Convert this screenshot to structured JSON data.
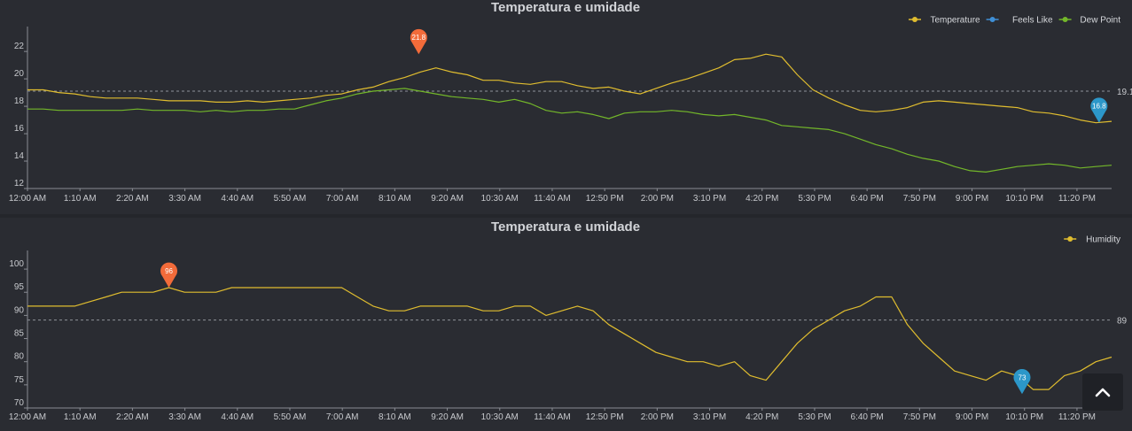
{
  "chart_data": [
    {
      "type": "line",
      "title": "Temperatura e umidade",
      "xlabels": [
        "12:00 AM",
        "1:10 AM",
        "2:20 AM",
        "3:30 AM",
        "4:40 AM",
        "5:50 AM",
        "7:00 AM",
        "8:10 AM",
        "9:20 AM",
        "10:30 AM",
        "11:40 AM",
        "12:50 PM",
        "2:00 PM",
        "3:10 PM",
        "4:20 PM",
        "5:30 PM",
        "6:40 PM",
        "7:50 PM",
        "9:00 PM",
        "10:10 PM",
        "11:20 PM"
      ],
      "ylim": [
        12,
        23.3
      ],
      "yticks": [
        "12",
        "14",
        "16",
        "18",
        "20",
        "22"
      ],
      "legend_position": "top-right",
      "average": {
        "value": 19.1,
        "label": "19.1"
      },
      "max_marker": {
        "series": "Temperature",
        "x": 24.9,
        "value": 21.8,
        "label": "21.8",
        "color": "#f26b3a"
      },
      "min_marker": {
        "series": "Temperature",
        "x": 68.2,
        "value": 16.8,
        "label": "16.8",
        "color": "#2c97c9"
      },
      "x_range": [
        0,
        69
      ],
      "series": [
        {
          "name": "Temperature",
          "color": "#e0bd2f",
          "x": [
            0,
            1,
            2,
            3,
            4,
            5,
            6,
            7,
            8,
            9,
            10,
            11,
            12,
            13,
            14,
            15,
            16,
            17,
            18,
            19,
            20,
            21,
            22,
            23,
            24,
            25,
            26,
            27,
            28,
            29,
            30,
            31,
            32,
            33,
            34,
            35,
            36,
            37,
            38,
            39,
            40,
            41,
            42,
            43,
            44,
            45,
            46,
            47,
            48,
            49,
            50,
            51,
            52,
            53,
            54,
            55,
            56,
            57,
            58,
            59,
            60,
            61,
            62,
            63,
            64,
            65,
            66,
            67,
            68,
            69
          ],
          "values": [
            19.2,
            19.2,
            19.0,
            18.9,
            18.7,
            18.6,
            18.6,
            18.6,
            18.5,
            18.4,
            18.4,
            18.4,
            18.3,
            18.3,
            18.4,
            18.3,
            18.4,
            18.5,
            18.6,
            18.8,
            18.9,
            19.2,
            19.4,
            19.8,
            20.1,
            20.5,
            20.8,
            20.5,
            20.3,
            19.9,
            19.9,
            19.7,
            19.6,
            19.8,
            19.8,
            19.5,
            19.3,
            19.4,
            19.1,
            18.9,
            19.3,
            19.7,
            20.0,
            20.4,
            20.8,
            21.4,
            21.5,
            21.8,
            21.6,
            20.3,
            19.2,
            18.6,
            18.1,
            17.7,
            17.6,
            17.7,
            17.9,
            18.3,
            18.4,
            18.3,
            18.2,
            18.1,
            18.0,
            17.9,
            17.6,
            17.5,
            17.3,
            17.0,
            16.8,
            16.9
          ]
        },
        {
          "name": "Feels Like",
          "color": "#3f8fd6",
          "x": [],
          "values": []
        },
        {
          "name": "Dew Point",
          "color": "#73b72a",
          "x": [
            0,
            1,
            2,
            3,
            4,
            5,
            6,
            7,
            8,
            9,
            10,
            11,
            12,
            13,
            14,
            15,
            16,
            17,
            18,
            19,
            20,
            21,
            22,
            23,
            24,
            25,
            26,
            27,
            28,
            29,
            30,
            31,
            32,
            33,
            34,
            35,
            36,
            37,
            38,
            39,
            40,
            41,
            42,
            43,
            44,
            45,
            46,
            47,
            48,
            49,
            50,
            51,
            52,
            53,
            54,
            55,
            56,
            57,
            58,
            59,
            60,
            61,
            62,
            63,
            64,
            65,
            66,
            67,
            68,
            69
          ],
          "values": [
            17.8,
            17.8,
            17.7,
            17.7,
            17.7,
            17.7,
            17.7,
            17.8,
            17.7,
            17.7,
            17.7,
            17.6,
            17.7,
            17.6,
            17.7,
            17.7,
            17.8,
            17.8,
            18.1,
            18.4,
            18.6,
            18.9,
            19.1,
            19.2,
            19.3,
            19.1,
            18.9,
            18.7,
            18.6,
            18.5,
            18.3,
            18.5,
            18.2,
            17.7,
            17.5,
            17.6,
            17.4,
            17.1,
            17.5,
            17.6,
            17.6,
            17.7,
            17.6,
            17.4,
            17.3,
            17.4,
            17.2,
            17.0,
            16.6,
            16.5,
            16.4,
            16.3,
            16.0,
            15.6,
            15.2,
            14.9,
            14.5,
            14.2,
            14.0,
            13.6,
            13.3,
            13.2,
            13.4,
            13.6,
            13.7,
            13.8,
            13.7,
            13.5,
            13.6,
            13.7
          ]
        }
      ]
    },
    {
      "type": "line",
      "title": "Temperatura e umidade",
      "xlabels": [
        "12:00 AM",
        "1:10 AM",
        "2:20 AM",
        "3:30 AM",
        "4:40 AM",
        "5:50 AM",
        "7:00 AM",
        "8:10 AM",
        "9:20 AM",
        "10:30 AM",
        "11:40 AM",
        "12:50 PM",
        "2:00 PM",
        "3:10 PM",
        "4:20 PM",
        "5:30 PM",
        "6:40 PM",
        "7:50 PM",
        "9:00 PM",
        "10:10 PM",
        "11:20 PM"
      ],
      "ylim": [
        70,
        102.5
      ],
      "yticks": [
        "70",
        "75",
        "80",
        "85",
        "90",
        "95",
        "100"
      ],
      "legend_position": "top-right",
      "average": {
        "value": 89,
        "label": "89"
      },
      "max_marker": {
        "series": "Humidity",
        "x": 9.0,
        "value": 96,
        "label": "96",
        "color": "#f26b3a"
      },
      "min_marker": {
        "series": "Humidity",
        "x": 63.3,
        "value": 73,
        "label": "73",
        "color": "#2c97c9"
      },
      "x_range": [
        0,
        69
      ],
      "series": [
        {
          "name": "Humidity",
          "color": "#e0bd2f",
          "x": [
            0,
            1,
            2,
            3,
            4,
            5,
            6,
            7,
            8,
            9,
            10,
            11,
            12,
            13,
            14,
            15,
            16,
            17,
            18,
            19,
            20,
            21,
            22,
            23,
            24,
            25,
            26,
            27,
            28,
            29,
            30,
            31,
            32,
            33,
            34,
            35,
            36,
            37,
            38,
            39,
            40,
            41,
            42,
            43,
            44,
            45,
            46,
            47,
            48,
            49,
            50,
            51,
            52,
            53,
            54,
            55,
            56,
            57,
            58,
            59,
            60,
            61,
            62,
            63,
            64,
            65,
            66,
            67,
            68,
            69
          ],
          "values": [
            92,
            92,
            92,
            92,
            93,
            94,
            95,
            95,
            95,
            96,
            95,
            95,
            95,
            96,
            96,
            96,
            96,
            96,
            96,
            96,
            96,
            94,
            92,
            91,
            91,
            92,
            92,
            92,
            92,
            91,
            91,
            92,
            92,
            90,
            91,
            92,
            91,
            88,
            86,
            84,
            82,
            81,
            80,
            80,
            79,
            80,
            77,
            76,
            80,
            84,
            87,
            89,
            91,
            92,
            94,
            94,
            88,
            84,
            81,
            78,
            77,
            76,
            78,
            77,
            74,
            74,
            77,
            78,
            80,
            81
          ]
        }
      ]
    }
  ],
  "ui": {
    "scroll_top_icon": "chevron-up-icon"
  }
}
